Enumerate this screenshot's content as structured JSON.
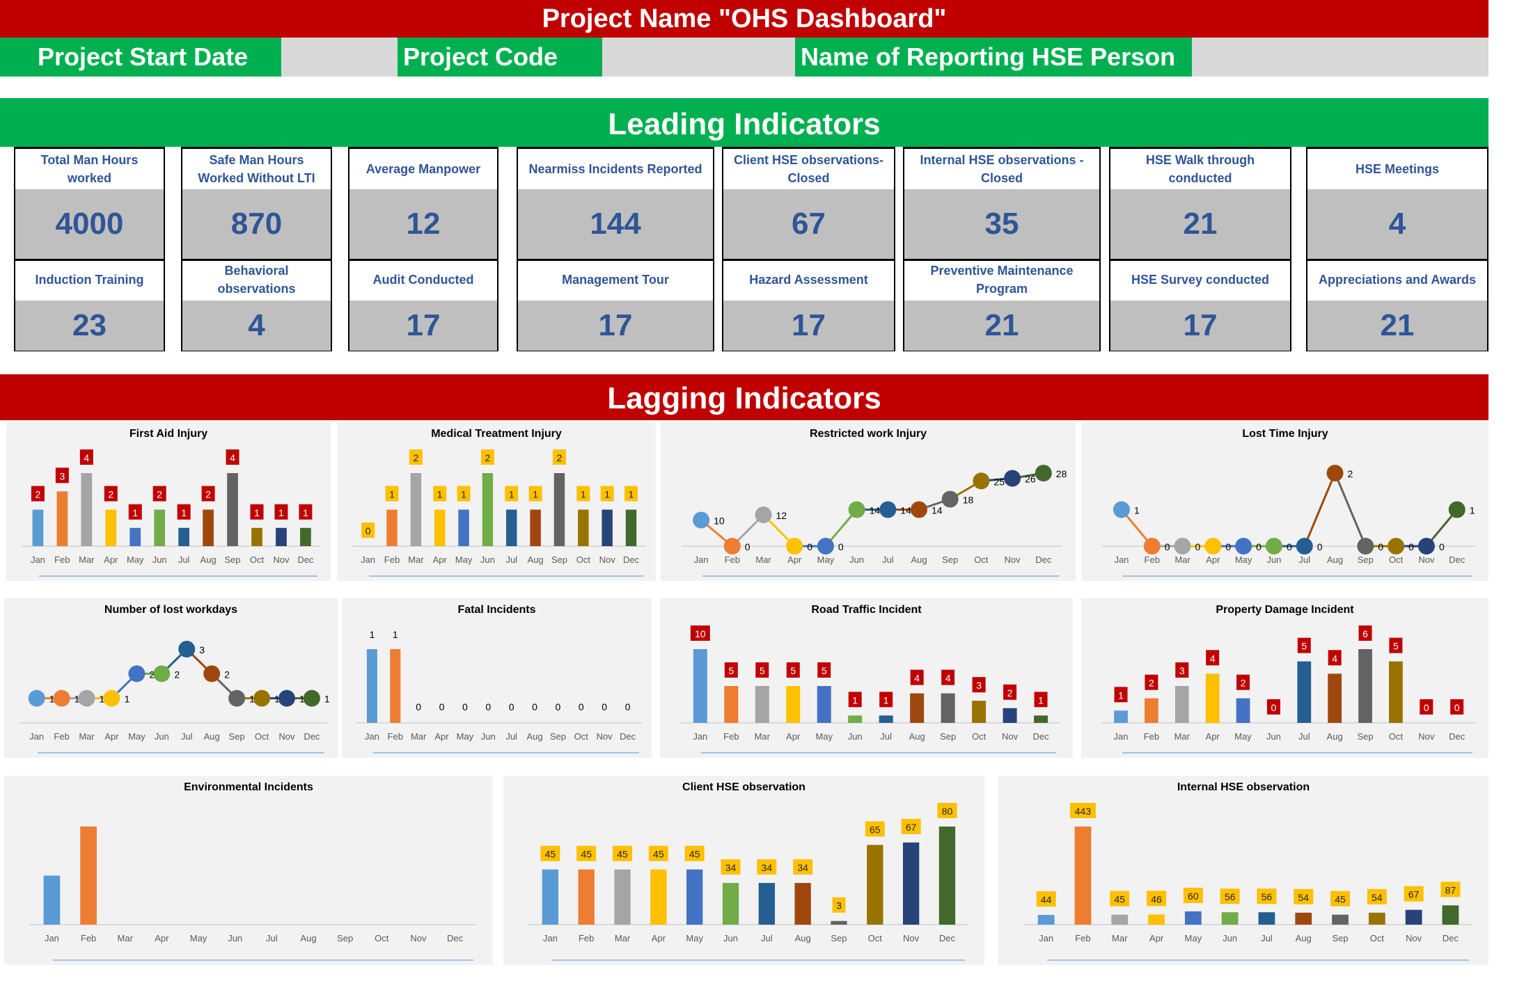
{
  "header": {
    "title": "Project Name \"OHS Dashboard\"",
    "start_date_label": "Project Start Date",
    "start_date_value": "",
    "project_code_label": "Project Code",
    "project_code_value": "",
    "hse_person_label": "Name of Reporting HSE Person",
    "hse_person_value": ""
  },
  "leading": {
    "title": "Leading Indicators",
    "cards": [
      {
        "top_label": "Total Man Hours worked",
        "top_value": "4000",
        "bottom_label": "Induction Training",
        "bottom_value": "23"
      },
      {
        "top_label": "Safe Man Hours Worked Without LTI",
        "top_value": "870",
        "bottom_label": "Behavioral observations",
        "bottom_value": "4"
      },
      {
        "top_label": "Average Manpower",
        "top_value": "12",
        "bottom_label": "Audit Conducted",
        "bottom_value": "17"
      },
      {
        "top_label": "Nearmiss Incidents Reported",
        "top_value": "144",
        "bottom_label": "Management Tour",
        "bottom_value": "17"
      },
      {
        "top_label": "Client HSE observations-Closed",
        "top_value": "67",
        "bottom_label": "Hazard Assessment",
        "bottom_value": "17"
      },
      {
        "top_label": "Internal HSE observations - Closed",
        "top_value": "35",
        "bottom_label": "Preventive Maintenance Program",
        "bottom_value": "21"
      },
      {
        "top_label": "HSE Walk through conducted",
        "top_value": "21",
        "bottom_label": "HSE Survey conducted",
        "bottom_value": "17"
      },
      {
        "top_label": "HSE Meetings",
        "top_value": "4",
        "bottom_label": "Appreciations and Awards",
        "bottom_value": "21"
      }
    ]
  },
  "lagging": {
    "title": "Lagging Indicators"
  },
  "colors": {
    "title_red": "#C00000",
    "header_green": "#00B050",
    "value_blue": "#2F5597",
    "label_red_box": "#C00000",
    "label_yellow_box": "#FFC000",
    "months": [
      "#5B9BD5",
      "#ED7D31",
      "#A5A5A5",
      "#FFC000",
      "#4472C4",
      "#70AD47",
      "#255E91",
      "#9E480E",
      "#636363",
      "#997300",
      "#264478",
      "#43682B"
    ]
  },
  "chart_data": [
    {
      "title": "First Aid Injury",
      "type": "bar",
      "label_style": "red-box",
      "categories": [
        "Jan",
        "Feb",
        "Mar",
        "Apr",
        "May",
        "Jun",
        "Jul",
        "Aug",
        "Sep",
        "Oct",
        "Nov",
        "Dec"
      ],
      "values": [
        2,
        3,
        4,
        2,
        1,
        2,
        1,
        2,
        4,
        1,
        1,
        1
      ],
      "grid": false
    },
    {
      "title": "Medical Treatment Injury",
      "type": "bar",
      "label_style": "yellow-box",
      "categories": [
        "Jan",
        "Feb",
        "Mar",
        "Apr",
        "May",
        "Jun",
        "Jul",
        "Aug",
        "Sep",
        "Oct",
        "Nov",
        "Dec"
      ],
      "values": [
        0,
        1,
        2,
        1,
        1,
        2,
        1,
        1,
        2,
        1,
        1,
        1
      ],
      "grid": false
    },
    {
      "title": "Restricted work Injury",
      "type": "line",
      "label_style": "plain",
      "categories": [
        "Jan",
        "Feb",
        "Mar",
        "Apr",
        "May",
        "Jun",
        "Jul",
        "Aug",
        "Sep",
        "Oct",
        "Nov",
        "Dec"
      ],
      "values": [
        10,
        0,
        12,
        0,
        0,
        14,
        14,
        14,
        18,
        25,
        26,
        28
      ],
      "grid": false
    },
    {
      "title": "Lost Time Injury",
      "type": "line",
      "label_style": "plain",
      "categories": [
        "Jan",
        "Feb",
        "Mar",
        "Apr",
        "May",
        "Jun",
        "Jul",
        "Aug",
        "Sep",
        "Oct",
        "Nov",
        "Dec"
      ],
      "values": [
        1,
        0,
        0,
        0,
        0,
        0,
        0,
        2,
        0,
        0,
        0,
        1
      ],
      "grid": false
    },
    {
      "title": "Number of lost workdays",
      "type": "line",
      "label_style": "plain",
      "categories": [
        "Jan",
        "Feb",
        "Mar",
        "Apr",
        "May",
        "Jun",
        "Jul",
        "Aug",
        "Sep",
        "Oct",
        "Nov",
        "Dec"
      ],
      "values": [
        1,
        1,
        1,
        1,
        2,
        2,
        3,
        2,
        1,
        1,
        1,
        1
      ],
      "grid": false
    },
    {
      "title": "Fatal Incidents",
      "type": "bar",
      "label_style": "plain",
      "categories": [
        "Jan",
        "Feb",
        "Mar",
        "Apr",
        "May",
        "Jun",
        "Jul",
        "Aug",
        "Sep",
        "Oct",
        "Nov",
        "Dec"
      ],
      "values": [
        1,
        1,
        0,
        0,
        0,
        0,
        0,
        0,
        0,
        0,
        0,
        0
      ],
      "grid": false
    },
    {
      "title": "Road Traffic Incident",
      "type": "bar",
      "label_style": "red-box",
      "categories": [
        "Jan",
        "Feb",
        "Mar",
        "Apr",
        "May",
        "Jun",
        "Jul",
        "Aug",
        "Sep",
        "Oct",
        "Nov",
        "Dec"
      ],
      "values": [
        10,
        5,
        5,
        5,
        5,
        1,
        1,
        4,
        4,
        3,
        2,
        1
      ],
      "grid": false
    },
    {
      "title": "Property Damage Incident",
      "type": "bar",
      "label_style": "red-box",
      "categories": [
        "Jan",
        "Feb",
        "Mar",
        "Apr",
        "May",
        "Jun",
        "Jul",
        "Aug",
        "Sep",
        "Oct",
        "Nov",
        "Dec"
      ],
      "values": [
        1,
        2,
        3,
        4,
        2,
        0,
        5,
        4,
        6,
        5,
        0,
        0
      ],
      "grid": false
    },
    {
      "title": "Environmental Incidents",
      "type": "bar",
      "label_style": "none",
      "categories": [
        "Jan",
        "Feb",
        "Mar",
        "Apr",
        "May",
        "Jun",
        "Jul",
        "Aug",
        "Sep",
        "Oct",
        "Nov",
        "Dec"
      ],
      "values": [
        1,
        2,
        0,
        0,
        0,
        0,
        0,
        0,
        0,
        0,
        0,
        0
      ],
      "grid": false
    },
    {
      "title": "Client HSE observation",
      "type": "bar",
      "label_style": "yellow-box",
      "categories": [
        "Jan",
        "Feb",
        "Mar",
        "Apr",
        "May",
        "Jun",
        "Jul",
        "Aug",
        "Sep",
        "Oct",
        "Nov",
        "Dec"
      ],
      "values": [
        45,
        45,
        45,
        45,
        45,
        34,
        34,
        34,
        3,
        65,
        67,
        80
      ],
      "grid": false
    },
    {
      "title": "Internal HSE observation",
      "type": "bar",
      "label_style": "yellow-box",
      "categories": [
        "Jan",
        "Feb",
        "Mar",
        "Apr",
        "May",
        "Jun",
        "Jul",
        "Aug",
        "Sep",
        "Oct",
        "Nov",
        "Dec"
      ],
      "values": [
        44,
        443,
        45,
        46,
        60,
        56,
        56,
        54,
        45,
        54,
        67,
        87
      ],
      "grid": false
    }
  ]
}
